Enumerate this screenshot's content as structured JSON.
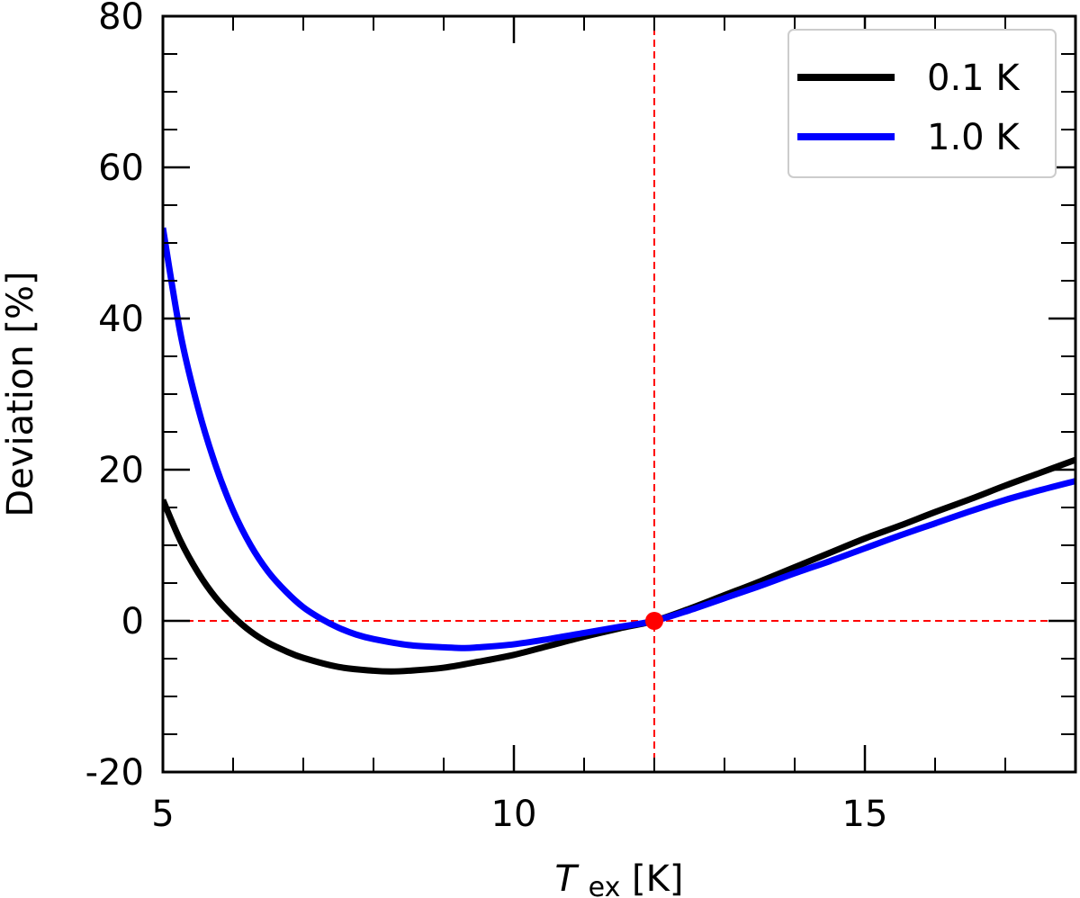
{
  "chart_data": {
    "type": "line",
    "xlabel": {
      "symbol": "T",
      "subscript": "ex",
      "unit": " [K]"
    },
    "ylabel": "Deviation [%]",
    "xlim": [
      5,
      18
    ],
    "ylim": [
      -20,
      80
    ],
    "xticks": [
      5,
      10,
      15
    ],
    "xtick_labels": [
      "5",
      "10",
      "15"
    ],
    "xminor": [
      6,
      7,
      8,
      9,
      11,
      12,
      13,
      14,
      16,
      17
    ],
    "yticks": [
      -20,
      0,
      20,
      40,
      60,
      80
    ],
    "ytick_labels": [
      "-20",
      "0",
      "20",
      "40",
      "60",
      "80"
    ],
    "yminor": [
      -15,
      -10,
      -5,
      5,
      10,
      15,
      25,
      30,
      35,
      45,
      50,
      55,
      65,
      70,
      75
    ],
    "series": [
      {
        "name": "0.1 K",
        "color": "#000000",
        "x": [
          5.0,
          5.25,
          5.5,
          5.75,
          6.0,
          6.25,
          6.5,
          6.75,
          7.0,
          7.5,
          8.0,
          8.25,
          8.5,
          9.0,
          9.5,
          10.0,
          10.5,
          11.0,
          11.5,
          12.0,
          12.5,
          13.0,
          13.5,
          14.0,
          14.5,
          15.0,
          15.5,
          16.0,
          16.5,
          17.0,
          17.5,
          18.0
        ],
        "y": [
          16.0,
          10.6,
          6.4,
          3.1,
          0.6,
          -1.4,
          -2.9,
          -4.0,
          -4.9,
          -6.1,
          -6.6,
          -6.7,
          -6.6,
          -6.2,
          -5.4,
          -4.5,
          -3.3,
          -2.1,
          -1.0,
          0.0,
          1.6,
          3.4,
          5.2,
          7.1,
          9.0,
          10.9,
          12.6,
          14.4,
          16.1,
          17.9,
          19.6,
          21.3
        ]
      },
      {
        "name": "1.0 K",
        "color": "#0000ff",
        "x": [
          5.0,
          5.25,
          5.5,
          5.75,
          6.0,
          6.25,
          6.5,
          6.75,
          7.0,
          7.25,
          7.5,
          7.75,
          8.0,
          8.5,
          9.0,
          9.3,
          9.5,
          10.0,
          10.5,
          11.0,
          11.5,
          12.0,
          12.5,
          13.0,
          13.5,
          14.0,
          14.5,
          15.0,
          15.5,
          16.0,
          16.5,
          17.0,
          17.5,
          18.0
        ],
        "y": [
          52.0,
          38.0,
          28.2,
          20.6,
          14.6,
          10.0,
          6.5,
          3.9,
          1.8,
          0.3,
          -0.9,
          -1.8,
          -2.4,
          -3.2,
          -3.5,
          -3.6,
          -3.5,
          -3.1,
          -2.4,
          -1.6,
          -0.8,
          0.0,
          1.4,
          3.0,
          4.6,
          6.3,
          7.9,
          9.6,
          11.3,
          12.9,
          14.5,
          16.0,
          17.3,
          18.5
        ]
      }
    ],
    "reference_lines": {
      "vertical_x": 12,
      "horizontal_y": 0,
      "color": "#ff0000",
      "style": "dashed"
    },
    "marker": {
      "x": 12,
      "y": 0,
      "color": "#ff0000"
    },
    "legend": {
      "placement": "top-right",
      "entries": [
        "0.1 K",
        "1.0 K"
      ]
    }
  }
}
